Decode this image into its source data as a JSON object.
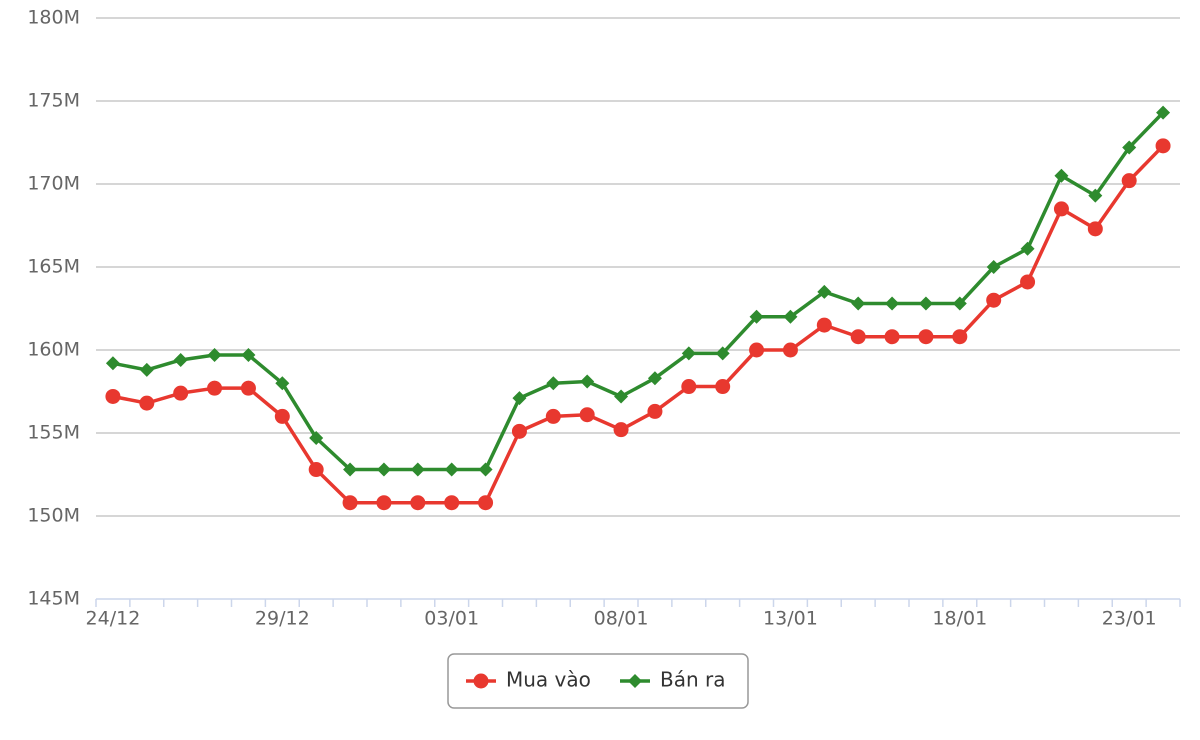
{
  "chart_data": {
    "type": "line",
    "categories": [
      "24/12",
      null,
      null,
      null,
      null,
      "29/12",
      null,
      null,
      null,
      null,
      "03/01",
      null,
      null,
      null,
      null,
      "08/01",
      null,
      null,
      null,
      null,
      "13/01",
      null,
      null,
      null,
      null,
      "18/01",
      null,
      null,
      null,
      null,
      "23/01",
      null
    ],
    "series": [
      {
        "name": "Mua vào",
        "color": "#e8382f",
        "marker": "circle",
        "values": [
          157.2,
          156.8,
          157.4,
          157.7,
          157.7,
          156.0,
          152.8,
          150.8,
          150.8,
          150.8,
          150.8,
          150.8,
          155.1,
          156.0,
          156.1,
          155.2,
          156.3,
          157.8,
          157.8,
          160.0,
          160.0,
          161.5,
          160.8,
          160.8,
          160.8,
          160.8,
          163.0,
          164.1,
          168.5,
          167.3,
          170.2,
          172.3
        ]
      },
      {
        "name": "Bán ra",
        "color": "#2e8b2e",
        "marker": "diamond",
        "values": [
          159.2,
          158.8,
          159.4,
          159.7,
          159.7,
          158.0,
          154.7,
          152.8,
          152.8,
          152.8,
          152.8,
          152.8,
          157.1,
          158.0,
          158.1,
          157.2,
          158.3,
          159.8,
          159.8,
          162.0,
          162.0,
          163.5,
          162.8,
          162.8,
          162.8,
          162.8,
          165.0,
          166.1,
          170.5,
          169.3,
          172.2,
          174.3
        ]
      }
    ],
    "ylim": [
      145,
      180
    ],
    "yticks": [
      {
        "value": 145,
        "label": "145M"
      },
      {
        "value": 150,
        "label": "150M"
      },
      {
        "value": 155,
        "label": "155M"
      },
      {
        "value": 160,
        "label": "160M"
      },
      {
        "value": 165,
        "label": "165M"
      },
      {
        "value": 170,
        "label": "170M"
      },
      {
        "value": 175,
        "label": "175M"
      },
      {
        "value": 180,
        "label": "180M"
      }
    ],
    "grid": true
  }
}
